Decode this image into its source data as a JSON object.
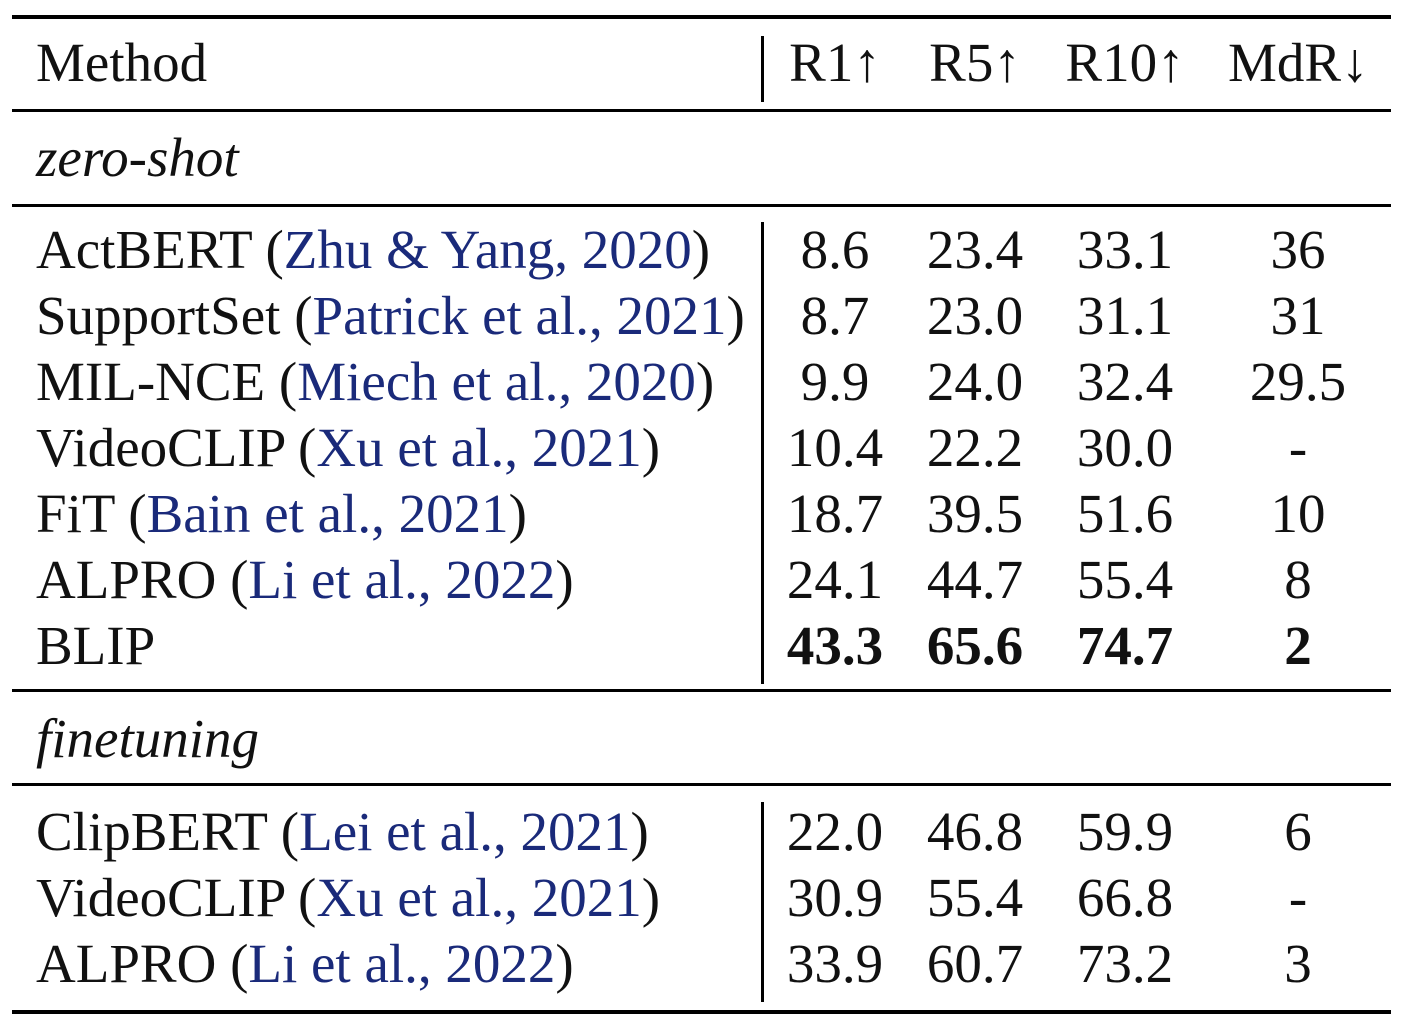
{
  "table": {
    "header": {
      "method": "Method",
      "cols": [
        "R1↑",
        "R5↑",
        "R10↑",
        "MdR↓"
      ]
    },
    "sections": [
      {
        "label": "zero-shot",
        "rows": [
          {
            "name": "ActBERT",
            "cite": "Zhu & Yang, 2020",
            "values": [
              "8.6",
              "23.4",
              "33.1",
              "36"
            ],
            "bold": false
          },
          {
            "name": "SupportSet",
            "cite": "Patrick et al., 2021",
            "values": [
              "8.7",
              "23.0",
              "31.1",
              "31"
            ],
            "bold": false
          },
          {
            "name": "MIL-NCE",
            "cite": "Miech et al., 2020",
            "values": [
              "9.9",
              "24.0",
              "32.4",
              "29.5"
            ],
            "bold": false
          },
          {
            "name": "VideoCLIP",
            "cite": "Xu et al., 2021",
            "values": [
              "10.4",
              "22.2",
              "30.0",
              "-"
            ],
            "bold": false
          },
          {
            "name": "FiT",
            "cite": "Bain et al., 2021",
            "values": [
              "18.7",
              "39.5",
              "51.6",
              "10"
            ],
            "bold": false
          },
          {
            "name": "ALPRO",
            "cite": "Li et al., 2022",
            "values": [
              "24.1",
              "44.7",
              "55.4",
              "8"
            ],
            "bold": false
          },
          {
            "name": "BLIP",
            "cite": "",
            "values": [
              "43.3",
              "65.6",
              "74.7",
              "2"
            ],
            "bold": true
          }
        ]
      },
      {
        "label": "finetuning",
        "rows": [
          {
            "name": "ClipBERT",
            "cite": "Lei et al., 2021",
            "values": [
              "22.0",
              "46.8",
              "59.9",
              "6"
            ],
            "bold": false
          },
          {
            "name": "VideoCLIP",
            "cite": "Xu et al., 2021",
            "values": [
              "30.9",
              "55.4",
              "66.8",
              "-"
            ],
            "bold": false
          },
          {
            "name": "ALPRO",
            "cite": "Li et al., 2022",
            "values": [
              "33.9",
              "60.7",
              "73.2",
              "3"
            ],
            "bold": false
          }
        ]
      }
    ]
  }
}
